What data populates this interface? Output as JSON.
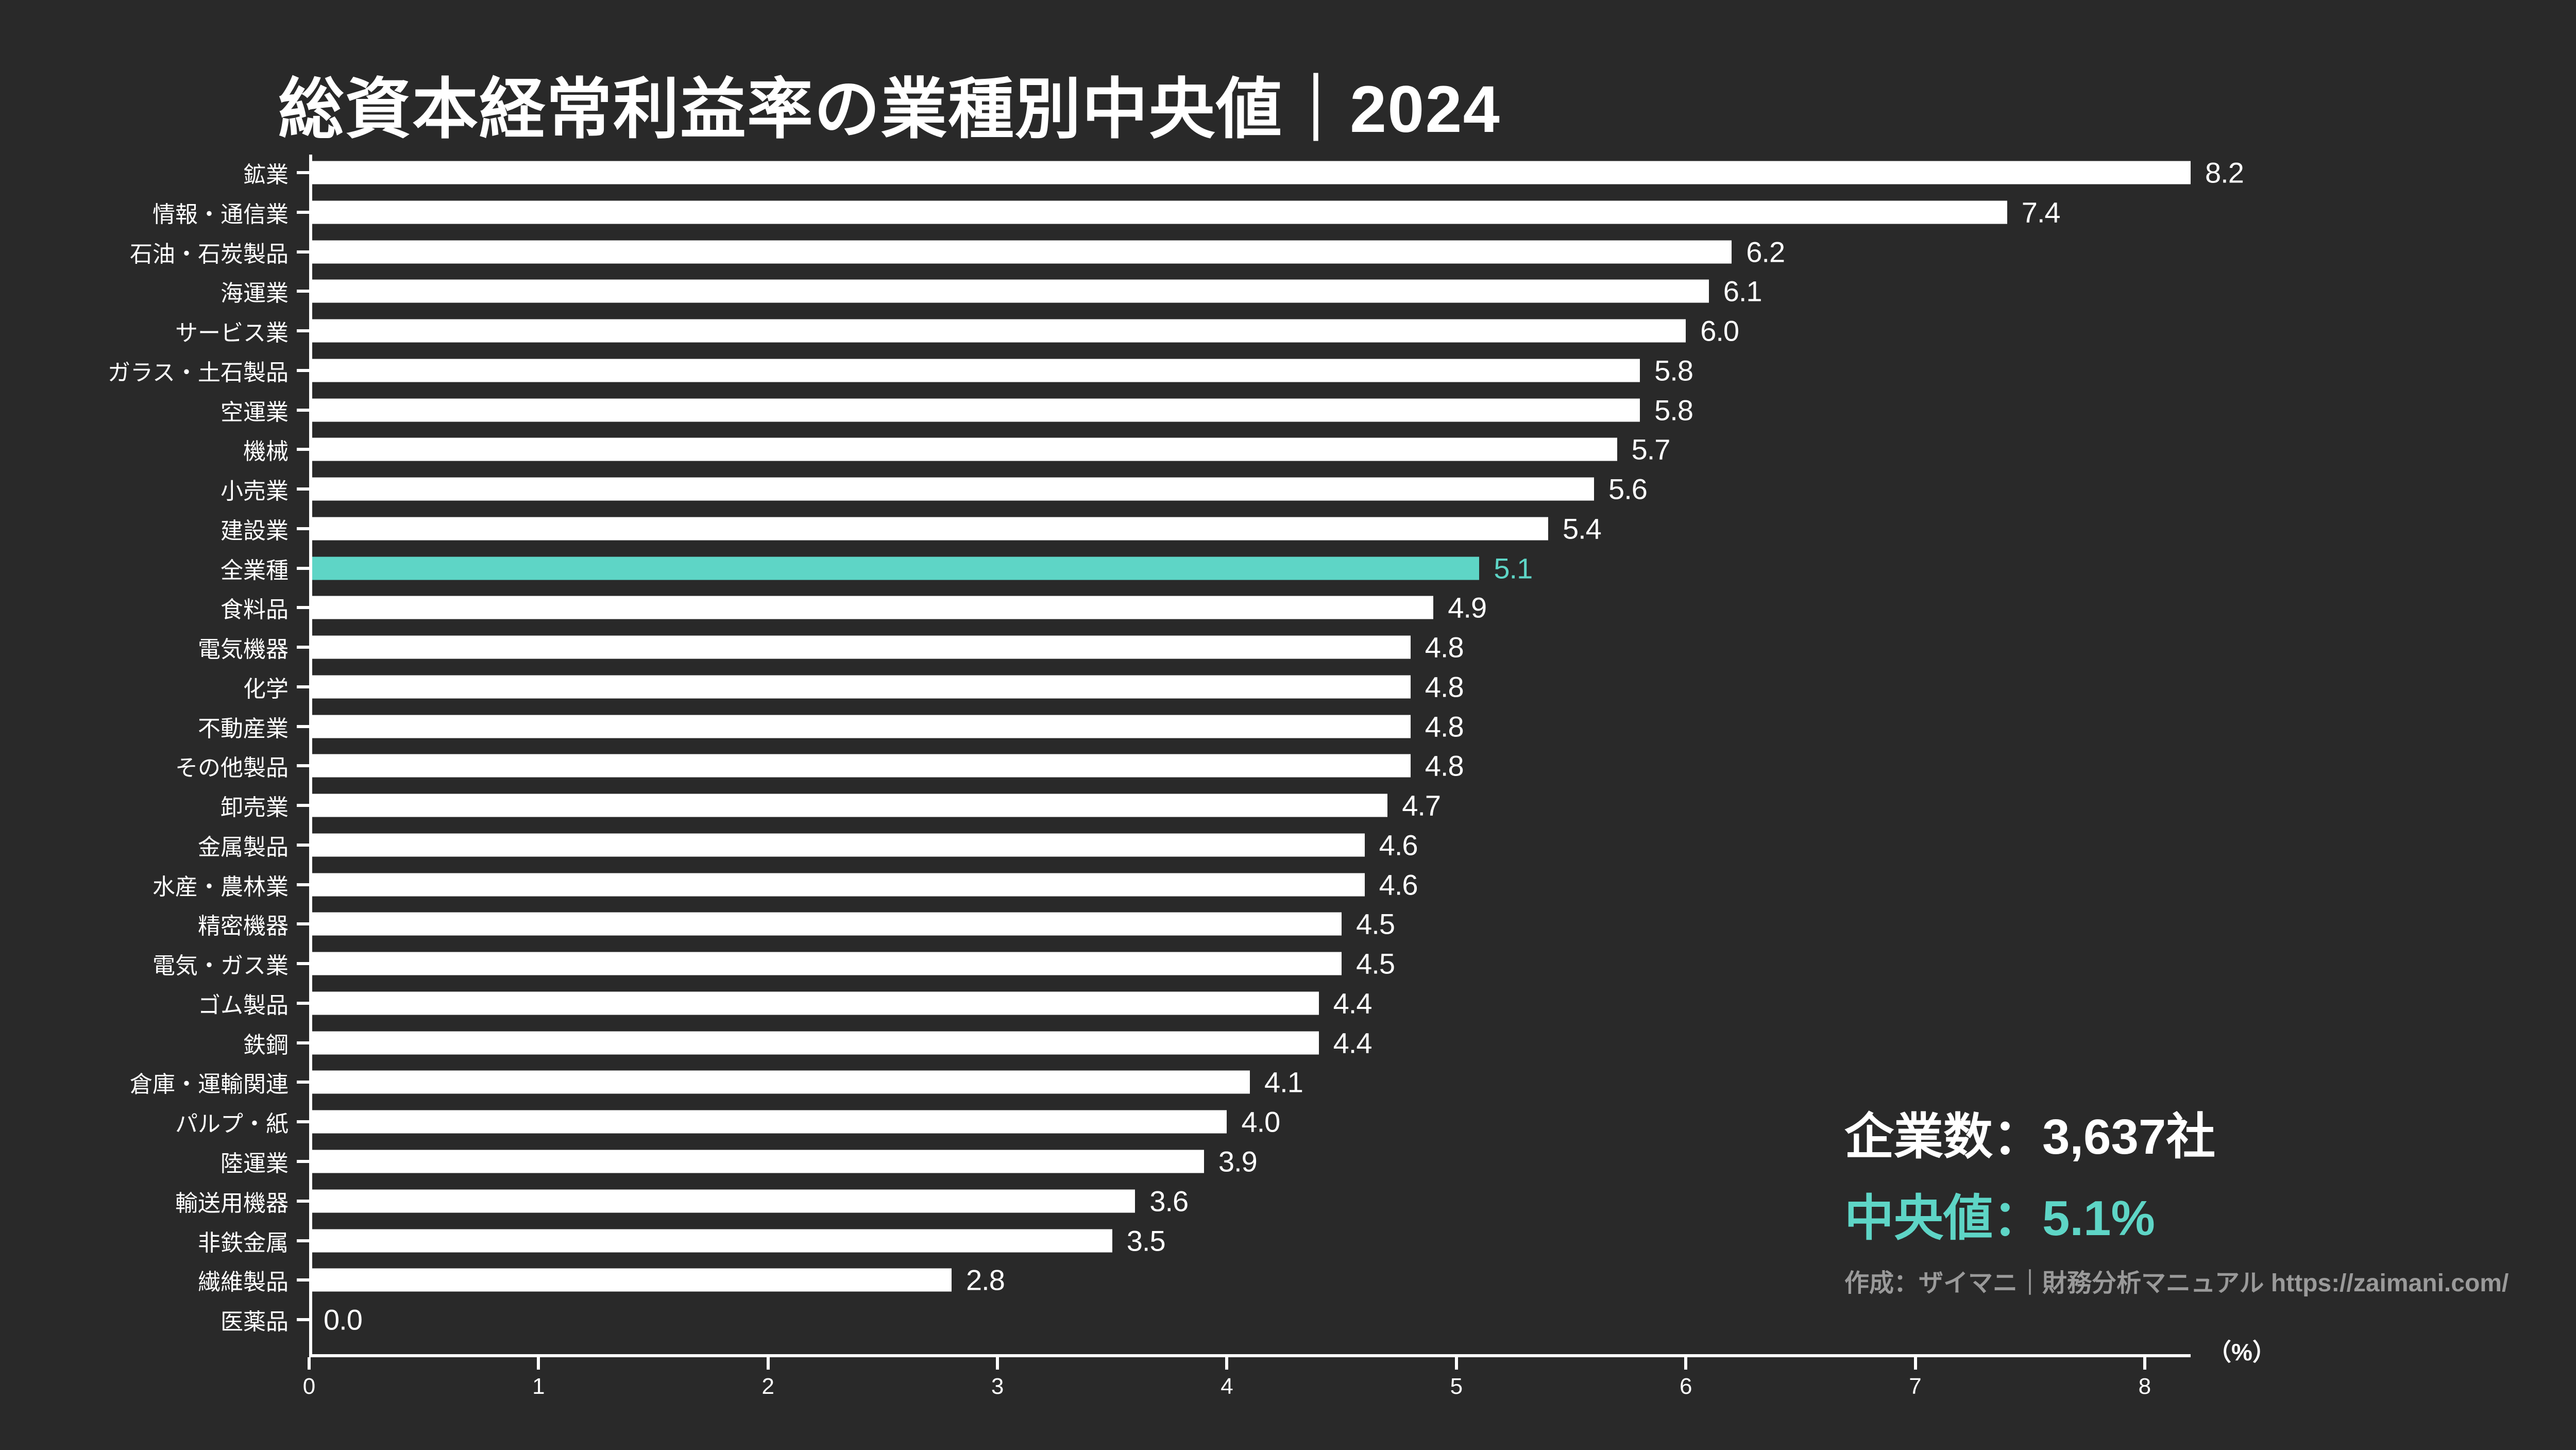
{
  "title": "総資本経常利益率の業種別中央値｜2024",
  "colors": {
    "background": "#292929",
    "bar": "#ffffff",
    "highlight": "#5ed5c6",
    "attribution_text": "#9a9a9a"
  },
  "chart_data": {
    "type": "bar",
    "orientation": "horizontal",
    "title": "総資本経常利益率の業種別中央値｜2024",
    "categories": [
      "鉱業",
      "情報・通信業",
      "石油・石炭製品",
      "海運業",
      "サービス業",
      "ガラス・土石製品",
      "空運業",
      "機械",
      "小売業",
      "建設業",
      "全業種",
      "食料品",
      "電気機器",
      "化学",
      "不動産業",
      "その他製品",
      "卸売業",
      "金属製品",
      "水産・農林業",
      "精密機器",
      "電気・ガス業",
      "ゴム製品",
      "鉄鋼",
      "倉庫・運輸関連",
      "パルプ・紙",
      "陸運業",
      "輸送用機器",
      "非鉄金属",
      "繊維製品",
      "医薬品"
    ],
    "values": [
      8.2,
      7.4,
      6.2,
      6.1,
      6.0,
      5.8,
      5.8,
      5.7,
      5.6,
      5.4,
      5.1,
      4.9,
      4.8,
      4.8,
      4.8,
      4.8,
      4.7,
      4.6,
      4.6,
      4.5,
      4.5,
      4.4,
      4.4,
      4.1,
      4.0,
      3.9,
      3.6,
      3.5,
      2.8,
      0.0
    ],
    "value_labels": [
      "8.2",
      "7.4",
      "6.2",
      "6.1",
      "6.0",
      "5.8",
      "5.8",
      "5.7",
      "5.6",
      "5.4",
      "5.1",
      "4.9",
      "4.8",
      "4.8",
      "4.8",
      "4.8",
      "4.7",
      "4.6",
      "4.6",
      "4.5",
      "4.5",
      "4.4",
      "4.4",
      "4.1",
      "4.0",
      "3.9",
      "3.6",
      "3.5",
      "2.8",
      "0.0"
    ],
    "highlight_index": 10,
    "highlight_category": "全業種",
    "x_ticks": [
      "0",
      "1",
      "2",
      "3",
      "4",
      "5",
      "6",
      "7",
      "8"
    ],
    "xlabel": "（%）",
    "xlim": [
      0,
      8.2
    ],
    "grid": false,
    "legend": "none"
  },
  "stats": {
    "companies": "企業数：3,637社",
    "median": "中央値：5.1%",
    "attribution": "作成：ザイマニ｜財務分析マニュアル https://zaimani.com/"
  }
}
